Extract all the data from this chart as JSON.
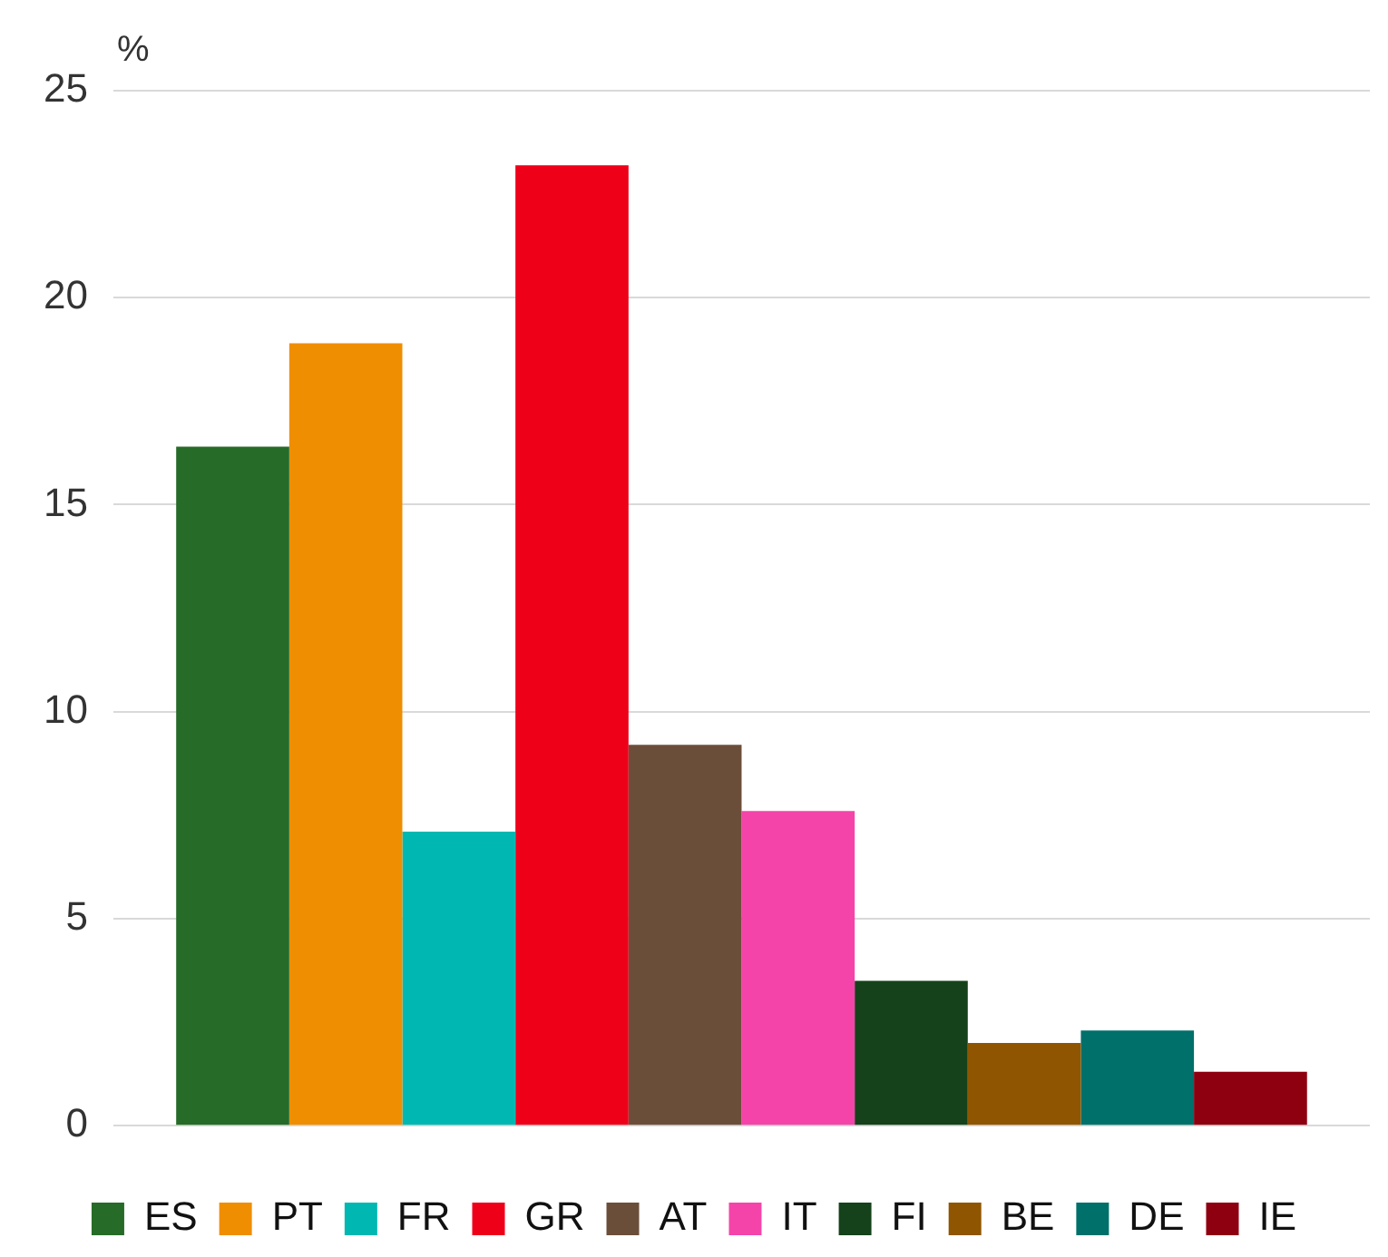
{
  "chart_data": {
    "type": "bar",
    "ylabel": "%",
    "categories": [
      null
    ],
    "series": [
      {
        "name": "ES",
        "color": "#266b27",
        "values": [
          16.4
        ]
      },
      {
        "name": "PT",
        "color": "#ef8e00",
        "values": [
          18.9
        ]
      },
      {
        "name": "FR",
        "color": "#00b8b1",
        "values": [
          7.1
        ]
      },
      {
        "name": "GR",
        "color": "#ee0019",
        "values": [
          23.2
        ]
      },
      {
        "name": "AT",
        "color": "#6b4e3a",
        "values": [
          9.2
        ]
      },
      {
        "name": "IT",
        "color": "#f444a9",
        "values": [
          7.6
        ]
      },
      {
        "name": "FI",
        "color": "#15421a",
        "values": [
          3.5
        ]
      },
      {
        "name": "BE",
        "color": "#8f5500",
        "values": [
          2.0
        ]
      },
      {
        "name": "DE",
        "color": "#00706a",
        "values": [
          2.3
        ]
      },
      {
        "name": "IE",
        "color": "#8e0010",
        "values": [
          1.3
        ]
      }
    ],
    "ylim": [
      0,
      25
    ],
    "yticks": [
      0,
      5,
      10,
      15,
      20,
      25
    ],
    "grid": "y",
    "legend": "bottom"
  }
}
